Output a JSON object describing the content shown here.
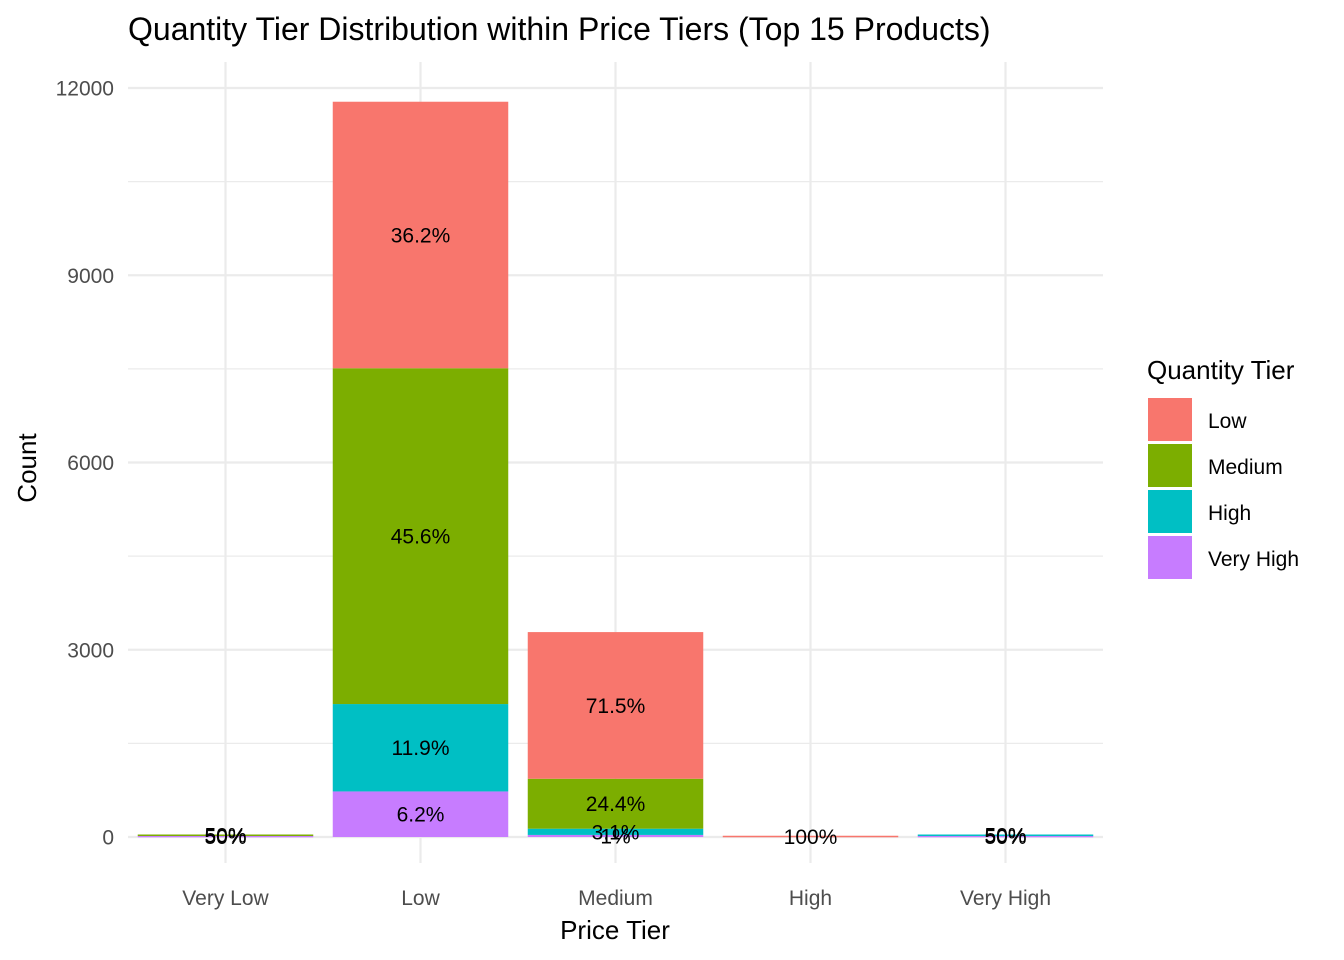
{
  "chart_data": {
    "type": "bar",
    "stacked": true,
    "title": "Quantity Tier Distribution within Price Tiers (Top 15 Products)",
    "xlabel": "Price Tier",
    "ylabel": "Count",
    "ylim": [
      0,
      12600
    ],
    "yticks": [
      0,
      3000,
      6000,
      9000,
      12000
    ],
    "grid": true,
    "legend": {
      "title": "Quantity Tier",
      "placement": "right"
    },
    "categories": [
      "Very Low",
      "Low",
      "Medium",
      "High",
      "Very High"
    ],
    "series": [
      {
        "name": "Low",
        "color": "#F8766D",
        "values": [
          0,
          4270,
          2350,
          20,
          0
        ],
        "labels": [
          "",
          "36.2%",
          "71.5%",
          "100%",
          ""
        ]
      },
      {
        "name": "Medium",
        "color": "#7CAE00",
        "values": [
          20,
          5380,
          800,
          0,
          0
        ],
        "labels": [
          "50%",
          "45.6%",
          "24.4%",
          "",
          ""
        ]
      },
      {
        "name": "High",
        "color": "#00BFC4",
        "values": [
          0,
          1400,
          100,
          0,
          20
        ],
        "labels": [
          "",
          "11.9%",
          "3.1%",
          "",
          "50%"
        ]
      },
      {
        "name": "Very High",
        "color": "#C77CFF",
        "values": [
          20,
          730,
          33,
          0,
          20
        ],
        "labels": [
          "50%",
          "6.2%",
          "1%",
          "",
          "50%"
        ]
      }
    ]
  }
}
